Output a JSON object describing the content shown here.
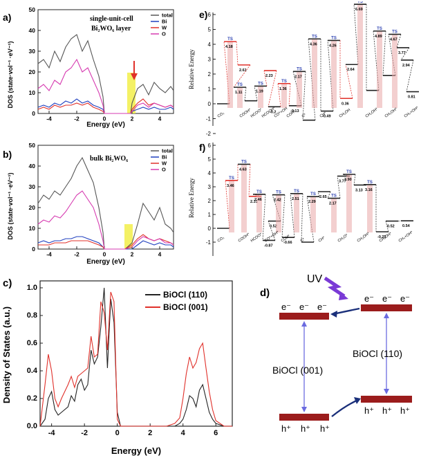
{
  "colors": {
    "total": "#555555",
    "bi": "#1f3fbf",
    "w": "#e0302a",
    "o": "#d63ab0",
    "highlight": "#f2ee4a",
    "arrow": "#e0302a",
    "band": "#9b1c1c",
    "bandArrow": "#1a2f7a",
    "uv": "#7a3ad6",
    "energyLevel": "#222222",
    "tsPink": "#e9a7a7",
    "pathRed": "#e0302a"
  },
  "panels": {
    "a": {
      "label": "a)",
      "title_line1": "single-unit-cell",
      "title_line2": "Bi₂WO₆ layer",
      "ylabel": "DOS (state·vol⁻¹ ·eV⁻¹)",
      "xlabel": "Energy (eV)",
      "yticks": [
        "0",
        "10",
        "20",
        "30",
        "40",
        "50"
      ],
      "xticks": [
        "-4",
        "-2",
        "0",
        "2",
        "4"
      ],
      "legend": [
        "total",
        "Bi",
        "W",
        "O"
      ]
    },
    "b": {
      "label": "b)",
      "title": "bulk Bi₂WO₆",
      "ylabel": "DOS (state·vol⁻¹ ·eV⁻¹)",
      "xlabel": "Energy (eV)",
      "yticks": [
        "0",
        "10",
        "20",
        "30",
        "40",
        "50"
      ],
      "xticks": [
        "-4",
        "-2",
        "0",
        "2",
        "4"
      ],
      "legend": [
        "total",
        "Bi",
        "W",
        "O"
      ]
    },
    "c": {
      "label": "c)",
      "ylabel": "Density of States (a.u.)",
      "xlabel": "Energy (eV)",
      "yticks": [
        "0.0",
        "0.2",
        "0.4",
        "0.6",
        "0.8",
        "1.0"
      ],
      "xticks": [
        "-4",
        "-2",
        "0",
        "2",
        "4",
        "6"
      ],
      "legend": [
        "BiOCl (110)",
        "BiOCl (001)"
      ]
    },
    "d": {
      "label": "d)",
      "uv": "UV",
      "left_label": "BiOCl (001)",
      "right_label": "BiOCl (110)",
      "electron": "e⁻",
      "hole": "h⁺"
    },
    "e": {
      "label": "e)",
      "ylabel": "Relative Energy",
      "yticks": [
        "-2",
        "-1",
        "0",
        "1",
        "2",
        "3",
        "4",
        "5",
        "6"
      ],
      "ts": "TS",
      "values": [
        "4.18",
        "2.61",
        "1.11",
        "1.19",
        "2.23",
        "1.36",
        "-0.13",
        "-0.2",
        "2.17",
        "0.36",
        "-0.49",
        "4.36",
        "2.64",
        "4.26",
        "6.69",
        "4.67",
        "3.77",
        "2.94",
        "3.73",
        "4.89",
        "3.97",
        "0.81"
      ],
      "states": [
        "CO₂",
        "COOH*",
        "HCOO*",
        "HCOOH*",
        "CO*+OH",
        "COH*",
        "C*",
        "CH*",
        "CH₂OH",
        "CH₂OH*",
        "CH₃OH*",
        "CH₄+OH*"
      ]
    },
    "f": {
      "label": "f)",
      "ylabel": "Relative Energy",
      "yticks": [
        "-1",
        "0",
        "1",
        "2",
        "3",
        "4",
        "5",
        "6"
      ],
      "ts": "TS",
      "values": [
        "3.46",
        "4.63",
        "2.31",
        "2.46",
        "2.42",
        "-0.87",
        "0.52",
        "-0.66",
        "2.51",
        "2.29",
        "2.65",
        "2.17",
        "3.77",
        "3.90",
        "3.13",
        "3.16",
        "-0.25",
        "0.52",
        "0.54"
      ],
      "states": [
        "CO₂",
        "COOH*",
        "HCOO*",
        "CO*+OH*",
        "COH*",
        "C*",
        "CH*",
        "CH₂O*",
        "CH₂OH*",
        "CH₃OH*",
        "CH₄+OH*"
      ]
    }
  },
  "chart_data": [
    {
      "type": "line",
      "panel": "a",
      "xlabel": "Energy (eV)",
      "ylabel": "DOS (state·vol⁻¹ ·eV⁻¹)",
      "xlim": [
        -4.8,
        5
      ],
      "ylim": [
        0,
        50
      ],
      "x": [
        -4.8,
        -4.4,
        -4.0,
        -3.6,
        -3.2,
        -2.8,
        -2.4,
        -2.0,
        -1.6,
        -1.2,
        -0.8,
        -0.4,
        -0.1,
        0,
        0.5,
        1.0,
        1.5,
        1.9,
        2.0,
        2.4,
        2.8,
        3.2,
        3.6,
        4.0,
        4.4,
        4.8,
        5.0
      ],
      "series": [
        {
          "name": "total",
          "values": [
            24,
            26,
            22,
            30,
            25,
            32,
            36,
            38,
            30,
            35,
            26,
            18,
            8,
            0,
            0,
            0,
            0,
            0,
            5,
            12,
            14,
            9,
            15,
            12,
            10,
            13,
            11
          ]
        },
        {
          "name": "Bi",
          "values": [
            3,
            4,
            3,
            5,
            4,
            6,
            5,
            7,
            5,
            6,
            4,
            3,
            2,
            0,
            0,
            0,
            0,
            0,
            1,
            2,
            3,
            2,
            3,
            2,
            2,
            3,
            2
          ]
        },
        {
          "name": "W",
          "values": [
            2,
            3,
            2,
            4,
            3,
            4,
            4,
            5,
            4,
            5,
            3,
            2,
            1,
            0,
            0,
            0,
            0,
            0,
            2,
            5,
            7,
            4,
            5,
            4,
            3,
            4,
            3
          ]
        },
        {
          "name": "O",
          "values": [
            12,
            14,
            11,
            16,
            14,
            20,
            22,
            26,
            20,
            22,
            16,
            10,
            4,
            0,
            0,
            0,
            0,
            0,
            1,
            4,
            5,
            3,
            5,
            4,
            3,
            4,
            3
          ]
        }
      ]
    },
    {
      "type": "line",
      "panel": "b",
      "xlabel": "Energy (eV)",
      "ylabel": "DOS (state·vol⁻¹ ·eV⁻¹)",
      "xlim": [
        -4.8,
        5
      ],
      "ylim": [
        0,
        50
      ],
      "x": [
        -4.8,
        -4.4,
        -4.0,
        -3.6,
        -3.2,
        -2.8,
        -2.4,
        -2.0,
        -1.6,
        -1.2,
        -0.8,
        -0.4,
        -0.1,
        0,
        0.5,
        1.0,
        1.5,
        2.0,
        2.4,
        2.8,
        3.2,
        3.6,
        4.0,
        4.4,
        4.8,
        5.0
      ],
      "series": [
        {
          "name": "total",
          "values": [
            22,
            26,
            24,
            28,
            26,
            30,
            34,
            40,
            44,
            38,
            32,
            20,
            8,
            0,
            0,
            0,
            0,
            3,
            12,
            22,
            18,
            14,
            20,
            12,
            10,
            8
          ]
        },
        {
          "name": "Bi",
          "values": [
            3,
            4,
            3,
            4,
            4,
            5,
            5,
            6,
            6,
            5,
            4,
            3,
            1,
            0,
            0,
            0,
            0,
            0,
            2,
            4,
            3,
            2,
            3,
            2,
            2,
            1
          ]
        },
        {
          "name": "W",
          "values": [
            2,
            2,
            2,
            3,
            3,
            3,
            4,
            4,
            4,
            4,
            3,
            2,
            1,
            0,
            0,
            0,
            0,
            2,
            5,
            7,
            5,
            4,
            5,
            4,
            3,
            2
          ]
        },
        {
          "name": "O",
          "values": [
            12,
            14,
            13,
            16,
            15,
            18,
            22,
            26,
            28,
            24,
            20,
            12,
            4,
            0,
            0,
            0,
            0,
            1,
            4,
            6,
            5,
            4,
            5,
            3,
            3,
            2
          ]
        }
      ]
    },
    {
      "type": "line",
      "panel": "c",
      "xlabel": "Energy (eV)",
      "ylabel": "Density of States (a.u.)",
      "xlim": [
        -4.7,
        7
      ],
      "ylim": [
        0,
        1.05
      ],
      "x": [
        -4.7,
        -4.4,
        -4.2,
        -4.0,
        -3.8,
        -3.6,
        -3.4,
        -3.0,
        -2.8,
        -2.6,
        -2.4,
        -2.2,
        -2.0,
        -1.8,
        -1.6,
        -1.4,
        -1.2,
        -1.0,
        -0.8,
        -0.6,
        -0.4,
        -0.2,
        0.0,
        0.2,
        1.0,
        2.0,
        3.0,
        3.5,
        3.8,
        4.0,
        4.2,
        4.4,
        4.6,
        4.8,
        5.0,
        5.2,
        5.4,
        5.6,
        5.8,
        6.0,
        6.5,
        7.0
      ],
      "series": [
        {
          "name": "BiOCl (110)",
          "values": [
            0.0,
            0.05,
            0.2,
            0.25,
            0.12,
            0.08,
            0.1,
            0.14,
            0.22,
            0.18,
            0.3,
            0.34,
            0.26,
            0.3,
            0.55,
            0.45,
            0.5,
            0.72,
            1.0,
            0.42,
            0.92,
            0.75,
            0.1,
            0.0,
            0.0,
            0.0,
            0.0,
            0.0,
            0.02,
            0.05,
            0.12,
            0.22,
            0.2,
            0.14,
            0.26,
            0.3,
            0.2,
            0.1,
            0.05,
            0.02,
            0.0,
            0.0
          ]
        },
        {
          "name": "BiOCl (001)",
          "values": [
            0.0,
            0.3,
            0.52,
            0.4,
            0.2,
            0.14,
            0.2,
            0.3,
            0.36,
            0.28,
            0.36,
            0.38,
            0.4,
            0.42,
            0.65,
            0.5,
            0.52,
            0.9,
            0.82,
            0.55,
            0.97,
            0.9,
            0.05,
            0.0,
            0.0,
            0.0,
            0.0,
            0.02,
            0.06,
            0.2,
            0.38,
            0.5,
            0.42,
            0.46,
            0.56,
            0.6,
            0.42,
            0.25,
            0.12,
            0.04,
            0.0,
            0.0
          ]
        }
      ]
    }
  ]
}
